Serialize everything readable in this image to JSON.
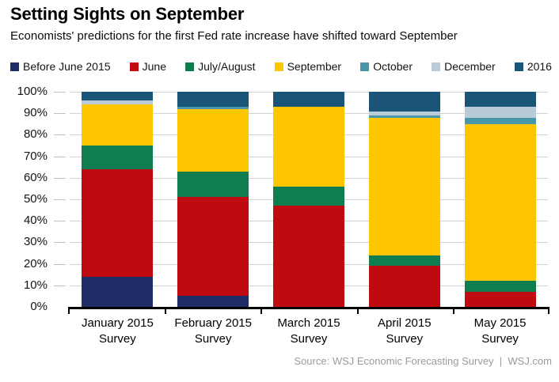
{
  "chart_data": {
    "type": "bar",
    "stacked": true,
    "title": "Setting Sights on September",
    "subtitle": "Economists' predictions for the first Fed rate increase have shifted toward September",
    "source": "Source: WSJ Economic Forecasting Survey  |  WSJ.com",
    "categories": [
      "January 2015",
      "February 2015",
      "March 2015",
      "April 2015",
      "May 2015"
    ],
    "category_suffix": "Survey",
    "series": [
      {
        "name": "Before June 2015",
        "color": "#1e2d66",
        "values": [
          14,
          5,
          0,
          0,
          0
        ]
      },
      {
        "name": "June",
        "color": "#c00a11",
        "values": [
          50,
          46,
          47,
          19,
          7
        ]
      },
      {
        "name": "July/August",
        "color": "#0f7d4f",
        "values": [
          11,
          12,
          9,
          5,
          5
        ]
      },
      {
        "name": "September",
        "color": "#fdc600",
        "values": [
          19,
          29,
          37,
          64,
          73
        ]
      },
      {
        "name": "October",
        "color": "#4796aa",
        "values": [
          0,
          1,
          0,
          1,
          3
        ]
      },
      {
        "name": "December",
        "color": "#b9cbd6",
        "values": [
          2,
          0,
          0,
          2,
          5
        ]
      },
      {
        "name": "2016",
        "color": "#1a5577",
        "values": [
          4,
          7,
          7,
          9,
          7
        ]
      }
    ],
    "y_axis": {
      "ticks": [
        "100%",
        "90%",
        "80%",
        "70%",
        "60%",
        "50%",
        "40%",
        "30%",
        "20%",
        "10%",
        "0%"
      ],
      "ylim": [
        0,
        100
      ],
      "grid": true
    },
    "legend_position": "top",
    "grid_color": "#d2d2d2",
    "axis_color": "#000000"
  }
}
